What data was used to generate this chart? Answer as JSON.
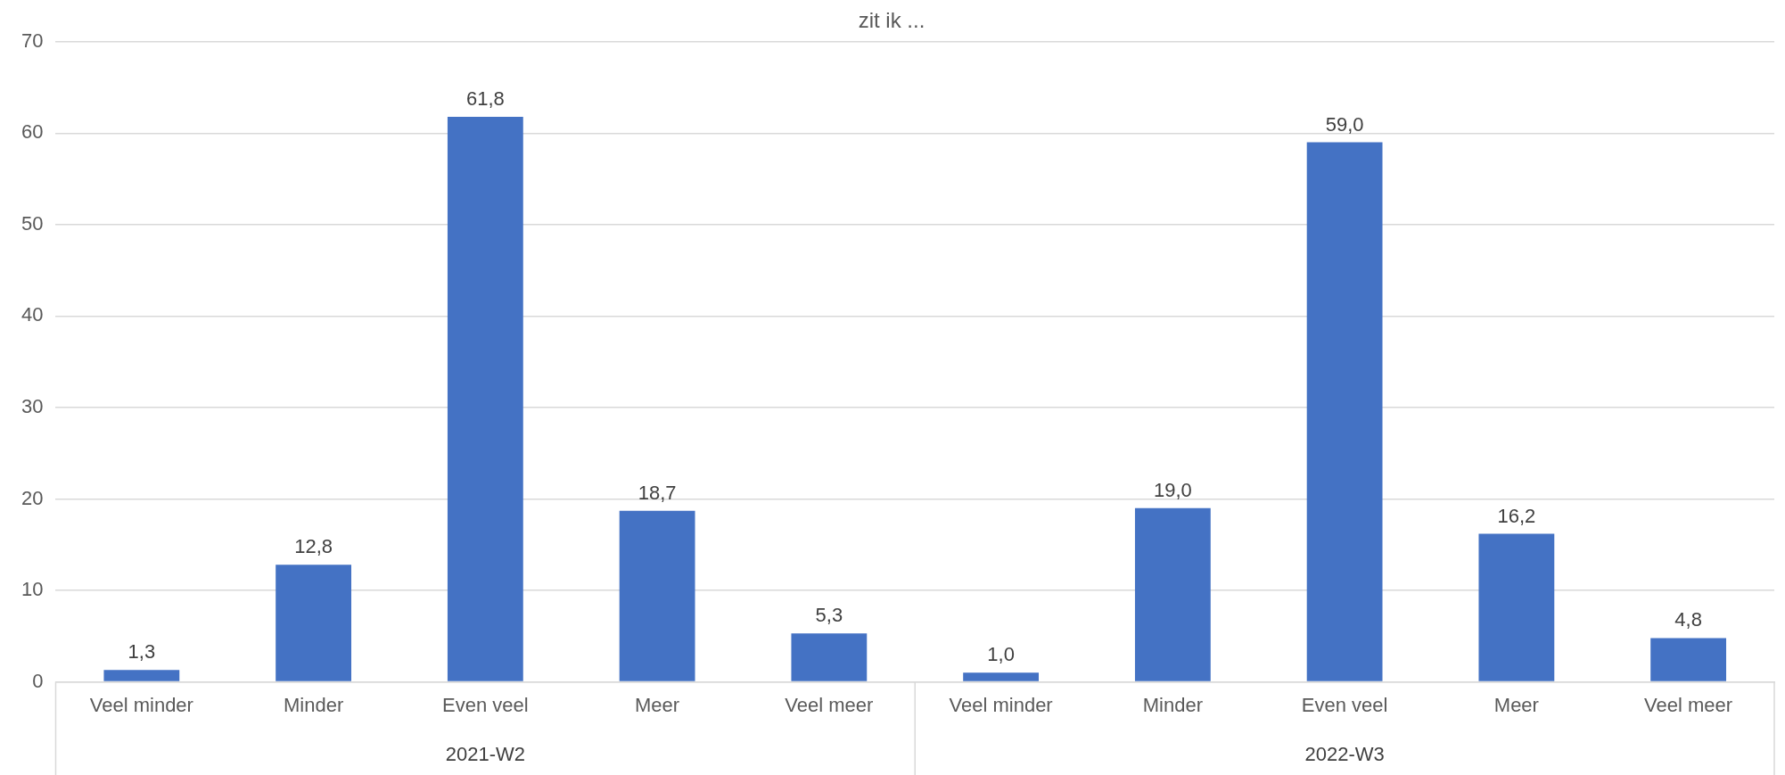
{
  "chart_data": {
    "type": "bar",
    "title": "zit ik ...",
    "categories": [
      "Veel minder",
      "Minder",
      "Even veel",
      "Meer",
      "Veel meer",
      "Veel minder",
      "Minder",
      "Even veel",
      "Meer",
      "Veel meer"
    ],
    "values": [
      1.3,
      12.8,
      61.8,
      18.7,
      5.3,
      1.0,
      19.0,
      59.0,
      16.2,
      4.8
    ],
    "value_labels": [
      "1,3",
      "12,8",
      "61,8",
      "18,7",
      "5,3",
      "1,0",
      "19,0",
      "59,0",
      "16,2",
      "4,8"
    ],
    "color": "#4472c4",
    "annotations": [
      "2021-W2",
      "2022-W3"
    ],
    "ylim": [
      0,
      70
    ],
    "yticks": [
      0,
      10,
      20,
      30,
      40,
      50,
      60,
      70
    ],
    "grid": "y",
    "legend": false
  }
}
